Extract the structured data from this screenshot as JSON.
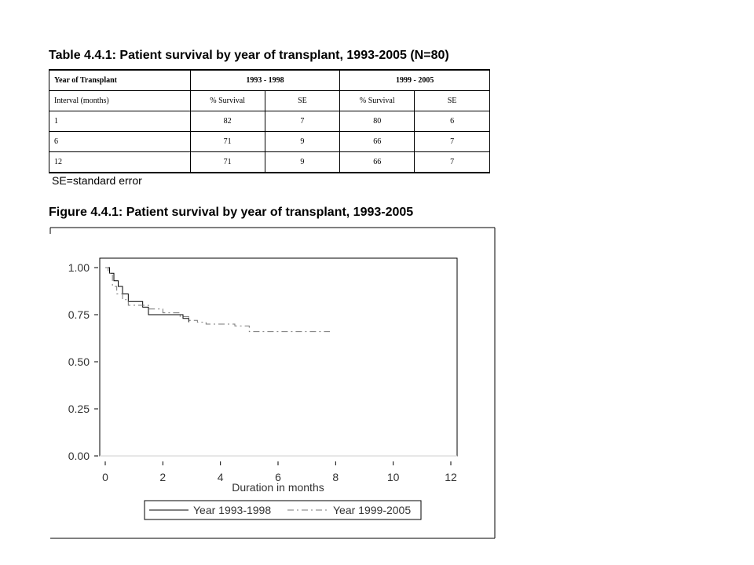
{
  "table": {
    "title": "Table 4.4.1: Patient survival by year of transplant, 1993-2005 (N=80)",
    "header": [
      "Year of Transplant",
      "1993 - 1998",
      "1999 - 2005"
    ],
    "subheader": [
      "Interval (months)",
      "% Survival",
      "SE",
      "% Survival",
      "SE"
    ],
    "rows": [
      [
        "1",
        "82",
        "7",
        "80",
        "6"
      ],
      [
        "6",
        "71",
        "9",
        "66",
        "7"
      ],
      [
        "12",
        "71",
        "9",
        "66",
        "7"
      ]
    ],
    "note": "SE=standard error"
  },
  "figure": {
    "title": "Figure 4.4.1: Patient survival by year of transplant, 1993-2005"
  },
  "chart_data": {
    "type": "line",
    "xlabel": "Duration in months",
    "ylabel": "",
    "xlim": [
      0,
      12
    ],
    "ylim": [
      0,
      1
    ],
    "xticks": [
      "0",
      "2",
      "4",
      "6",
      "8",
      "10",
      "12"
    ],
    "yticks": [
      "0.00",
      "0.25",
      "0.50",
      "0.75",
      "1.00"
    ],
    "legend_position": "bottom",
    "series": [
      {
        "name": "Year 1993-1998",
        "style": "solid",
        "color": "#000000",
        "x": [
          0.0,
          0.15,
          0.3,
          0.45,
          0.6,
          0.8,
          1.3,
          1.5,
          2.3,
          2.7,
          2.9
        ],
        "y": [
          1.0,
          0.97,
          0.93,
          0.9,
          0.86,
          0.82,
          0.79,
          0.75,
          0.75,
          0.73,
          0.71
        ]
      },
      {
        "name": "Year 1999-2005",
        "style": "dashed",
        "color": "#777777",
        "x": [
          0.0,
          0.1,
          0.25,
          0.4,
          0.6,
          0.8,
          1.2,
          1.5,
          2.0,
          2.6,
          2.9,
          3.2,
          3.5,
          4.5,
          5.0,
          7.8
        ],
        "y": [
          1.0,
          0.97,
          0.9,
          0.86,
          0.83,
          0.8,
          0.8,
          0.78,
          0.76,
          0.74,
          0.72,
          0.71,
          0.7,
          0.69,
          0.66,
          0.66
        ]
      }
    ]
  }
}
